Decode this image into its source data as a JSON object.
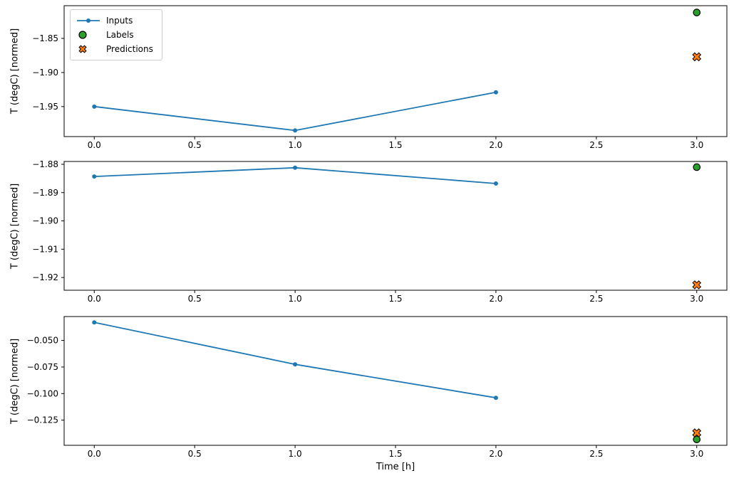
{
  "figure": {
    "background": "#ffffff",
    "xlabel": "Time [h]",
    "legend": {
      "position": "upper left",
      "items": [
        {
          "label": "Inputs",
          "marker": "line-dot",
          "color": "#1f77b4"
        },
        {
          "label": "Labels",
          "marker": "circle",
          "color": "#2ca02c"
        },
        {
          "label": "Predictions",
          "marker": "x",
          "color": "#ff7f0e"
        }
      ]
    },
    "colors": {
      "inputs": "#1f77b4",
      "labels": "#2ca02c",
      "predictions": "#ff7f0e",
      "marker_edge": "#000000",
      "spine": "#000000"
    }
  },
  "chart_data": [
    {
      "type": "line",
      "ylabel": "T (degC) [normed]",
      "xlim": [
        -0.15,
        3.15
      ],
      "ylim": [
        -1.994,
        -1.802
      ],
      "grid": false,
      "xticks": {
        "values": [
          0.0,
          0.5,
          1.0,
          1.5,
          2.0,
          2.5,
          3.0
        ],
        "labels": [
          "0.0",
          "0.5",
          "1.0",
          "1.5",
          "2.0",
          "2.5",
          "3.0"
        ]
      },
      "yticks": {
        "values": [
          -1.85,
          -1.9,
          -1.95
        ],
        "labels": [
          "−1.85",
          "−1.90",
          "−1.95"
        ]
      },
      "series": [
        {
          "name": "Inputs",
          "style": "line-dot",
          "color": "#1f77b4",
          "x": [
            0,
            1,
            2
          ],
          "y": [
            -1.95,
            -1.985,
            -1.929
          ]
        },
        {
          "name": "Labels",
          "style": "circle",
          "color": "#2ca02c",
          "x": [
            3
          ],
          "y": [
            -1.812
          ]
        },
        {
          "name": "Predictions",
          "style": "x",
          "color": "#ff7f0e",
          "x": [
            3
          ],
          "y": [
            -1.877
          ]
        }
      ]
    },
    {
      "type": "line",
      "ylabel": "T (degC) [normed]",
      "xlim": [
        -0.15,
        3.15
      ],
      "ylim": [
        -1.9245,
        -1.879
      ],
      "grid": false,
      "xticks": {
        "values": [
          0.0,
          0.5,
          1.0,
          1.5,
          2.0,
          2.5,
          3.0
        ],
        "labels": [
          "0.0",
          "0.5",
          "1.0",
          "1.5",
          "2.0",
          "2.5",
          "3.0"
        ]
      },
      "yticks": {
        "values": [
          -1.88,
          -1.89,
          -1.9,
          -1.91,
          -1.92
        ],
        "labels": [
          "−1.88",
          "−1.89",
          "−1.90",
          "−1.91",
          "−1.92"
        ]
      },
      "series": [
        {
          "name": "Inputs",
          "style": "line-dot",
          "color": "#1f77b4",
          "x": [
            0,
            1,
            2
          ],
          "y": [
            -1.8843,
            -1.8812,
            -1.8868
          ]
        },
        {
          "name": "Labels",
          "style": "circle",
          "color": "#2ca02c",
          "x": [
            3
          ],
          "y": [
            -1.881
          ]
        },
        {
          "name": "Predictions",
          "style": "x",
          "color": "#ff7f0e",
          "x": [
            3
          ],
          "y": [
            -1.9226
          ]
        }
      ]
    },
    {
      "type": "line",
      "ylabel": "T (degC) [normed]",
      "xlabel": "Time [h]",
      "xlim": [
        -0.15,
        3.15
      ],
      "ylim": [
        -0.1487,
        -0.0275
      ],
      "grid": false,
      "xticks": {
        "values": [
          0.0,
          0.5,
          1.0,
          1.5,
          2.0,
          2.5,
          3.0
        ],
        "labels": [
          "0.0",
          "0.5",
          "1.0",
          "1.5",
          "2.0",
          "2.5",
          "3.0"
        ]
      },
      "yticks": {
        "values": [
          -0.05,
          -0.075,
          -0.1,
          -0.125
        ],
        "labels": [
          "−0.050",
          "−0.075",
          "−0.100",
          "−0.125"
        ]
      },
      "series": [
        {
          "name": "Inputs",
          "style": "line-dot",
          "color": "#1f77b4",
          "x": [
            0,
            1,
            2
          ],
          "y": [
            -0.033,
            -0.0725,
            -0.104
          ]
        },
        {
          "name": "Labels",
          "style": "circle",
          "color": "#2ca02c",
          "x": [
            3
          ],
          "y": [
            -0.1432
          ]
        },
        {
          "name": "Predictions",
          "style": "x",
          "color": "#ff7f0e",
          "x": [
            3
          ],
          "y": [
            -0.137
          ]
        }
      ]
    }
  ]
}
